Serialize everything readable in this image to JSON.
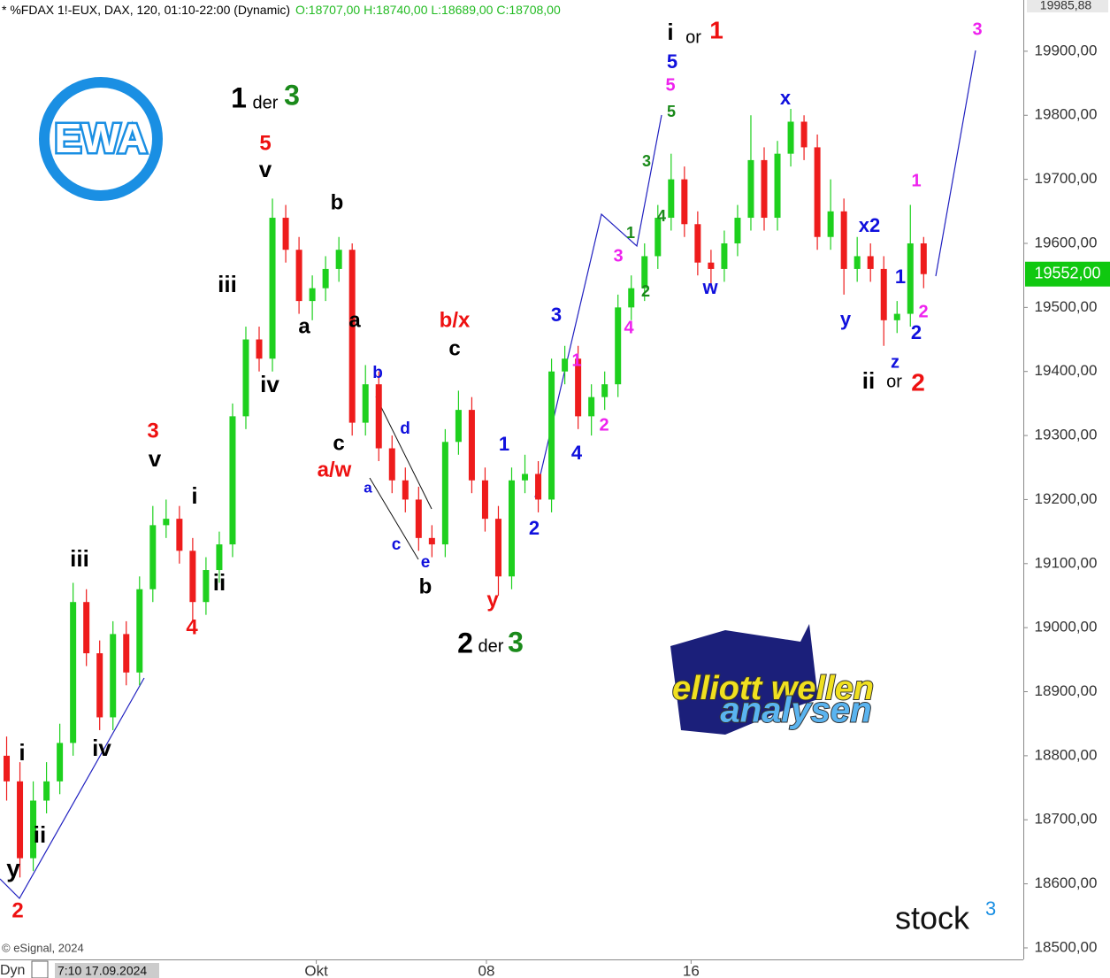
{
  "header": {
    "symbol": "* %FDAX 1!-EUX, DAX, 120, 01:10-22:00 (Dynamic)",
    "ohlc": "O:18707,00 H:18740,00 L:18689,00 C:18708,00"
  },
  "copyright": "© eSignal, 2024",
  "x_start_label": "Dyn",
  "x_start_box": "7:10 17.09.2024",
  "logo_ewa": "EWA",
  "logo_ew_line1": "elliott wellen",
  "logo_ew_line2": "analysen",
  "logo_stock": "stock",
  "logo_stock_sup": "3",
  "chart_data": {
    "type": "candlestick",
    "up_color": "#1ed01e",
    "down_color": "#ee1c1c",
    "ylim": [
      18482,
      19980
    ],
    "xlim": [
      -0.5,
      76.5
    ],
    "top_label": "19985,88",
    "last_price": {
      "value": 19552,
      "label": "19552,00"
    },
    "yticks": [
      {
        "value": 18500,
        "label": "18500,00"
      },
      {
        "value": 18600,
        "label": "18600,00"
      },
      {
        "value": 18700,
        "label": "18700,00"
      },
      {
        "value": 18800,
        "label": "18800,00"
      },
      {
        "value": 18900,
        "label": "18900,00"
      },
      {
        "value": 19000,
        "label": "19000,00"
      },
      {
        "value": 19100,
        "label": "19100,00"
      },
      {
        "value": 19200,
        "label": "19200,00"
      },
      {
        "value": 19300,
        "label": "19300,00"
      },
      {
        "value": 19400,
        "label": "19400,00"
      },
      {
        "value": 19500,
        "label": "19500,00"
      },
      {
        "value": 19600,
        "label": "19600,00"
      },
      {
        "value": 19700,
        "label": "19700,00"
      },
      {
        "value": 19800,
        "label": "19800,00"
      },
      {
        "value": 19900,
        "label": "19900,00"
      }
    ],
    "xticks": [
      {
        "value": 23.3,
        "label": "Okt"
      },
      {
        "value": 36.1,
        "label": "08"
      },
      {
        "value": 51.5,
        "label": "16"
      }
    ],
    "open": [
      18800,
      18760,
      18640,
      18730,
      18760,
      18820,
      19040,
      18960,
      18860,
      18990,
      18930,
      19060,
      19160,
      19170,
      19120,
      19040,
      19090,
      19130,
      19330,
      19450,
      19420,
      19640,
      19590,
      19510,
      19530,
      19560,
      19590,
      19320,
      19380,
      19280,
      19230,
      19200,
      19140,
      19130,
      19290,
      19340,
      19230,
      19170,
      19080,
      19230,
      19240,
      19200,
      19400,
      19420,
      19330,
      19360,
      19380,
      19500,
      19530,
      19580,
      19640,
      19700,
      19630,
      19570,
      19560,
      19600,
      19640,
      19730,
      19640,
      19740,
      19790,
      19750,
      19610,
      19650,
      19560,
      19580,
      19560,
      19480,
      19490,
      19600
    ],
    "high": [
      18830,
      18790,
      18760,
      18790,
      18850,
      19070,
      19060,
      18980,
      19010,
      19010,
      19080,
      19190,
      19200,
      19190,
      19140,
      19110,
      19150,
      19350,
      19470,
      19470,
      19670,
      19660,
      19610,
      19550,
      19580,
      19610,
      19600,
      19410,
      19400,
      19300,
      19250,
      19220,
      19160,
      19310,
      19370,
      19360,
      19250,
      19190,
      19250,
      19270,
      19260,
      19420,
      19440,
      19440,
      19380,
      19400,
      19520,
      19550,
      19600,
      19660,
      19740,
      19720,
      19650,
      19590,
      19620,
      19660,
      19800,
      19750,
      19760,
      19810,
      19800,
      19770,
      19700,
      19670,
      19610,
      19600,
      19580,
      19510,
      19660,
      19610
    ],
    "low": [
      18730,
      18610,
      18620,
      18710,
      18740,
      18800,
      18940,
      18840,
      18840,
      18910,
      18910,
      19040,
      19140,
      19100,
      19010,
      19020,
      19070,
      19110,
      19310,
      19400,
      19400,
      19570,
      19490,
      19480,
      19510,
      19540,
      19300,
      19300,
      19260,
      19210,
      19180,
      19120,
      19110,
      19110,
      19270,
      19210,
      19150,
      19050,
      19060,
      19210,
      19180,
      19180,
      19380,
      19310,
      19300,
      19340,
      19360,
      19480,
      19510,
      19560,
      19620,
      19610,
      19550,
      19530,
      19540,
      19580,
      19620,
      19620,
      19620,
      19720,
      19730,
      19590,
      19590,
      19520,
      19540,
      19540,
      19440,
      19460,
      19470,
      19530
    ],
    "close": [
      18760,
      18640,
      18730,
      18760,
      18820,
      19040,
      18960,
      18860,
      18990,
      18930,
      19060,
      19160,
      19170,
      19120,
      19040,
      19090,
      19130,
      19330,
      19450,
      19420,
      19640,
      19590,
      19510,
      19530,
      19560,
      19590,
      19320,
      19380,
      19280,
      19230,
      19200,
      19140,
      19130,
      19290,
      19340,
      19230,
      19170,
      19080,
      19230,
      19240,
      19200,
      19400,
      19420,
      19330,
      19360,
      19380,
      19500,
      19530,
      19580,
      19640,
      19700,
      19630,
      19570,
      19560,
      19600,
      19640,
      19730,
      19640,
      19740,
      19790,
      19750,
      19610,
      19650,
      19560,
      19580,
      19560,
      19480,
      19490,
      19600,
      19552
    ],
    "annotations": [
      {
        "text": "y",
        "color": "#000000"
      },
      {
        "text": "i",
        "color": "#000000"
      },
      {
        "text": "ii",
        "color": "#000000"
      },
      {
        "text": "iii",
        "color": "#000000"
      },
      {
        "text": "iv",
        "color": "#000000"
      },
      {
        "text": "i",
        "color": "#000000"
      },
      {
        "text": "ii",
        "color": "#000000"
      },
      {
        "text": "v",
        "color": "#000000"
      },
      {
        "text": "iii",
        "color": "#000000"
      },
      {
        "text": "iv",
        "color": "#000000"
      },
      {
        "text": "v",
        "color": "#000000"
      },
      {
        "text": "a",
        "color": "#000000"
      },
      {
        "text": "b",
        "color": "#000000"
      },
      {
        "text": "a",
        "color": "#000000"
      },
      {
        "text": "c",
        "color": "#000000"
      },
      {
        "text": "c",
        "color": "#000000"
      },
      {
        "text": "b",
        "color": "#000000"
      },
      {
        "text": "i",
        "color": "#000000"
      },
      {
        "text": "ii",
        "color": "#000000"
      },
      {
        "text": "2",
        "color": "#ee1111"
      },
      {
        "text": "4",
        "color": "#ee1111"
      },
      {
        "text": "3",
        "color": "#ee1111"
      },
      {
        "text": "5",
        "color": "#ee1111"
      },
      {
        "text": "a/w",
        "color": "#ee1111"
      },
      {
        "text": "b/x",
        "color": "#ee1111"
      },
      {
        "text": "y",
        "color": "#ee1111"
      },
      {
        "text": "1",
        "color": "#ee1111"
      },
      {
        "text": "2",
        "color": "#ee1111"
      },
      {
        "text": "1",
        "color": "#000000"
      },
      {
        "text": "der",
        "color": "#000000"
      },
      {
        "text": "3",
        "color": "#1a8a1a"
      },
      {
        "text": "2",
        "color": "#000000"
      },
      {
        "text": "der",
        "color": "#000000"
      },
      {
        "text": "3",
        "color": "#1a8a1a"
      },
      {
        "text": "or",
        "color": "#000000"
      },
      {
        "text": "or",
        "color": "#000000"
      },
      {
        "text": "b",
        "color": "#1010dd"
      },
      {
        "text": "d",
        "color": "#1010dd"
      },
      {
        "text": "a",
        "color": "#1010dd"
      },
      {
        "text": "c",
        "color": "#1010dd"
      },
      {
        "text": "e",
        "color": "#1010dd"
      },
      {
        "text": "1",
        "color": "#1010dd"
      },
      {
        "text": "2",
        "color": "#1010dd"
      },
      {
        "text": "3",
        "color": "#1010dd"
      },
      {
        "text": "4",
        "color": "#1010dd"
      },
      {
        "text": "5",
        "color": "#1010dd"
      },
      {
        "text": "w",
        "color": "#1010dd"
      },
      {
        "text": "x",
        "color": "#1010dd"
      },
      {
        "text": "x2",
        "color": "#1010dd"
      },
      {
        "text": "y",
        "color": "#1010dd"
      },
      {
        "text": "z",
        "color": "#1010dd"
      },
      {
        "text": "1",
        "color": "#1010dd"
      },
      {
        "text": "2",
        "color": "#1010dd"
      },
      {
        "text": "5",
        "color": "#ee22ee"
      },
      {
        "text": "3",
        "color": "#ee22ee"
      },
      {
        "text": "4",
        "color": "#ee22ee"
      },
      {
        "text": "1",
        "color": "#ee22ee"
      },
      {
        "text": "2",
        "color": "#ee22ee"
      },
      {
        "text": "1",
        "color": "#ee22ee"
      },
      {
        "text": "2",
        "color": "#ee22ee"
      },
      {
        "text": "3",
        "color": "#ee22ee"
      },
      {
        "text": "5",
        "color": "#1a8a1a"
      },
      {
        "text": "3",
        "color": "#1a8a1a"
      },
      {
        "text": "1",
        "color": "#1a8a1a"
      },
      {
        "text": "4",
        "color": "#1a8a1a"
      },
      {
        "text": "2",
        "color": "#1a8a1a"
      }
    ]
  }
}
